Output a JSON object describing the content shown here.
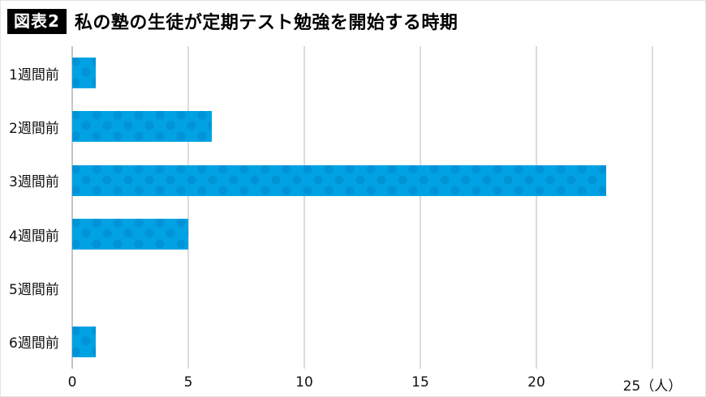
{
  "header": {
    "badge": "図表2",
    "title": "私の塾の生徒が定期テスト勉強を開始する時期"
  },
  "chart_data": {
    "type": "bar",
    "orientation": "horizontal",
    "title": "私の塾の生徒が定期テスト勉強を開始する時期",
    "categories": [
      "1週間前",
      "2週間前",
      "3週間前",
      "4週間前",
      "5週間前",
      "6週間前"
    ],
    "values": [
      1,
      6,
      23,
      5,
      0,
      1
    ],
    "xlim": [
      0,
      25
    ],
    "xticks": [
      0,
      5,
      10,
      15,
      20,
      25
    ],
    "xtick_labels": [
      "0",
      "5",
      "10",
      "15",
      "20",
      "25（人）"
    ],
    "x_unit": "人",
    "grid": true,
    "legend": false,
    "bar_color": "#00a2e3",
    "bar_dot_color": "#0089c4",
    "gridline_color": "#b9b9b9"
  }
}
